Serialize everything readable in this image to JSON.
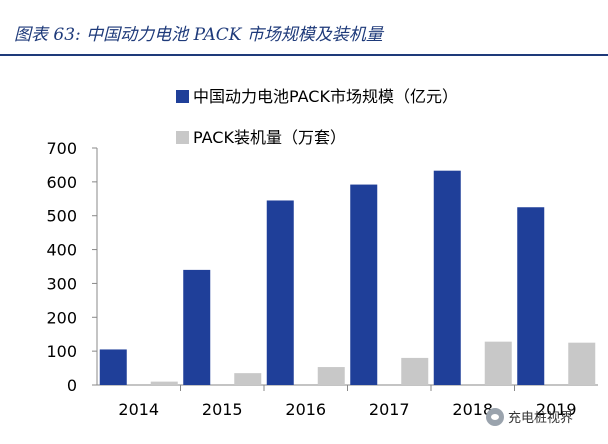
{
  "caption": "图表 63:  中国动力电池 PACK 市场规模及装机量",
  "watermark": "充电桩视界",
  "colors": {
    "series1": "#1f3f99",
    "series2": "#c8c8c8",
    "caption": "#1e3a7a"
  },
  "chart_data": {
    "type": "bar",
    "title": "",
    "xlabel": "",
    "ylabel": "",
    "categories": [
      "2014",
      "2015",
      "2016",
      "2017",
      "2018",
      "2019"
    ],
    "ylim": [
      0,
      700
    ],
    "yticks": [
      0,
      100,
      200,
      300,
      400,
      500,
      600,
      700
    ],
    "grid": false,
    "legend_position": "top-left",
    "series": [
      {
        "name": "中国动力电池PACK市场规模（亿元）",
        "values": [
          105,
          340,
          545,
          592,
          633,
          525
        ]
      },
      {
        "name": "PACK装机量（万套）",
        "values": [
          10,
          35,
          53,
          80,
          128,
          125
        ]
      }
    ]
  }
}
